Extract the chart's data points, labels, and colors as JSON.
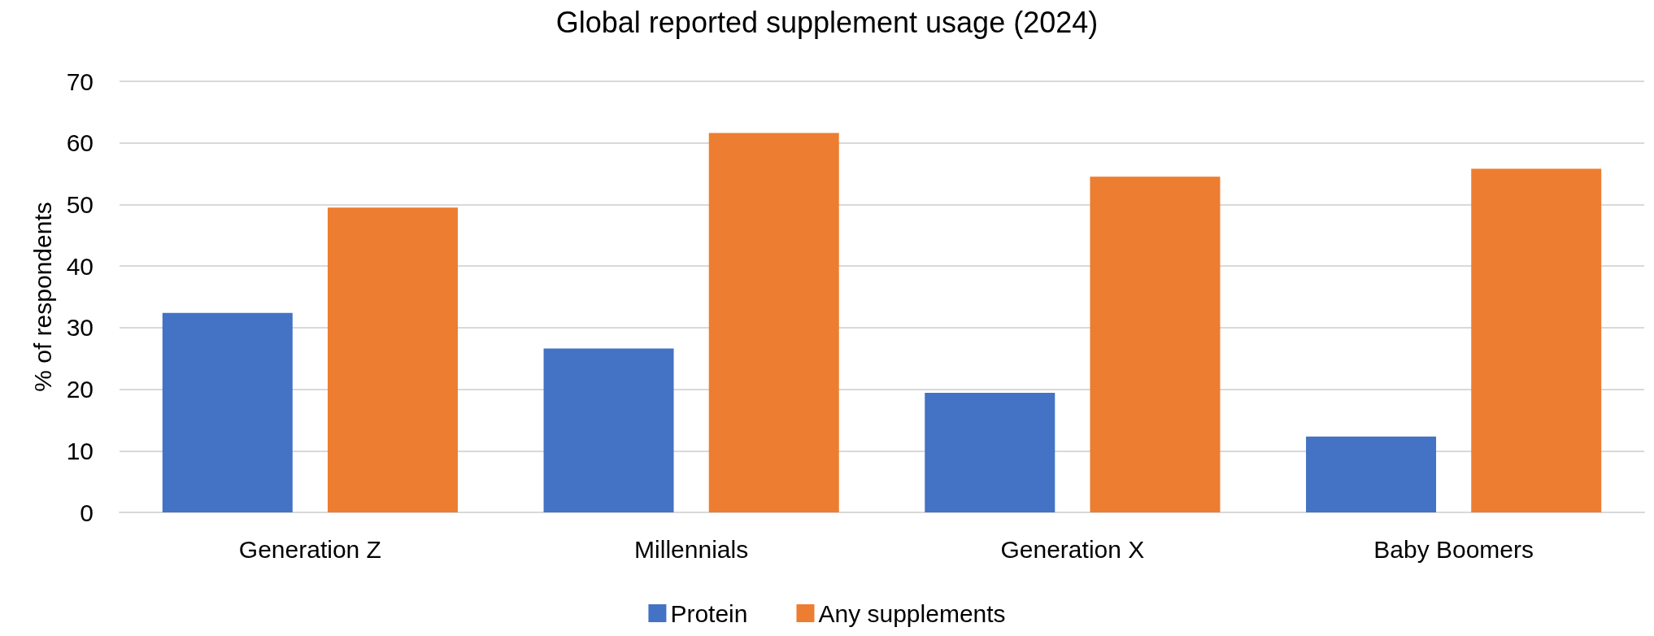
{
  "chart_data": {
    "type": "bar",
    "title": "Global reported supplement usage (2024)",
    "ylabel": "% of respondents",
    "categories": [
      "Generation Z",
      "Millennials",
      "Generation X",
      "Baby Boomers"
    ],
    "series": [
      {
        "name": "Protein",
        "color": "#4472c4",
        "values": [
          32.4,
          26.6,
          19.4,
          12.3
        ]
      },
      {
        "name": "Any supplements",
        "color": "#ed7d31",
        "values": [
          49.5,
          61.6,
          54.5,
          55.8
        ]
      }
    ],
    "ylim": [
      0,
      70
    ],
    "yticks": [
      0,
      10,
      20,
      30,
      40,
      50,
      60,
      70
    ],
    "grid": "y",
    "legend": "bottom"
  }
}
